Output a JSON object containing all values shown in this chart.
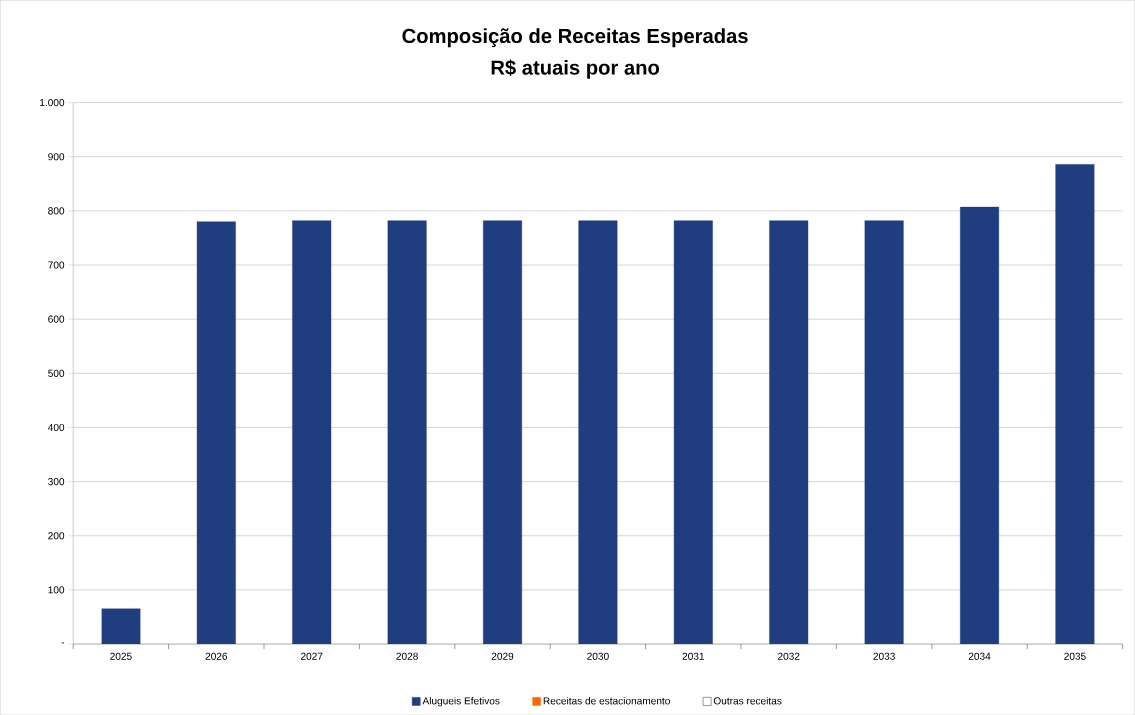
{
  "chart_data": {
    "type": "bar",
    "title": "Composição de Receitas Esperadas",
    "subtitle": "R$ atuais por ano",
    "categories": [
      "2025",
      "2026",
      "2027",
      "2028",
      "2029",
      "2030",
      "2031",
      "2032",
      "2033",
      "2034",
      "2035"
    ],
    "series": [
      {
        "name": "Alugueis Efetivos",
        "color": "#1f3d7f",
        "values": [
          65,
          780,
          782,
          782,
          782,
          782,
          782,
          782,
          782,
          807,
          886
        ]
      },
      {
        "name": "Receitas de estacionamento",
        "color": "#ff6600",
        "values": [
          0,
          0,
          0,
          0,
          0,
          0,
          0,
          0,
          0,
          0,
          0
        ]
      },
      {
        "name": "Outras receitas",
        "color": "#ffffff",
        "values": [
          0,
          0,
          0,
          0,
          0,
          0,
          0,
          0,
          0,
          0,
          0
        ]
      }
    ],
    "stacked": true,
    "ylim": [
      0,
      1000
    ],
    "yticks": [
      {
        "value": 0,
        "label": "-"
      },
      100,
      200,
      300,
      400,
      500,
      600,
      700,
      800,
      900,
      {
        "value": 1000,
        "label": "1.000"
      }
    ],
    "grid": "y",
    "legend": "bottom"
  }
}
